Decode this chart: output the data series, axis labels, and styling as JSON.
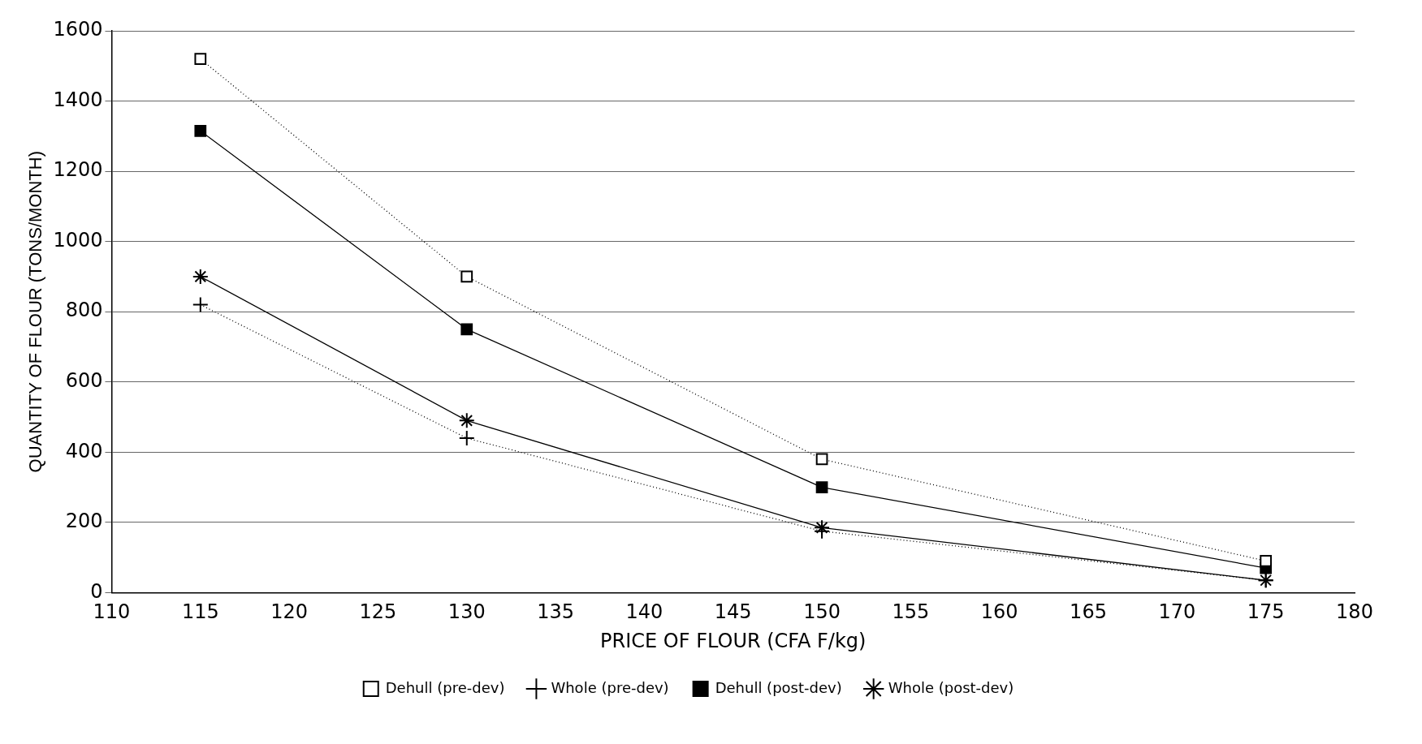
{
  "chart_data": {
    "type": "line",
    "xlabel": "PRICE OF FLOUR (CFA F/kg)",
    "ylabel": "QUANTITY OF FLOUR (TONS/MONTH)",
    "x": [
      115,
      130,
      150,
      175
    ],
    "series": [
      {
        "name": "Dehull (pre-dev)",
        "color": "#000000",
        "values": [
          1520,
          900,
          380,
          90
        ],
        "marker": "square",
        "line_style": "dotted"
      },
      {
        "name": "Whole (pre-dev)",
        "color": "#000000",
        "values": [
          820,
          440,
          175,
          35
        ],
        "marker": "cross",
        "line_style": "dotted"
      },
      {
        "name": "Dehull (post-dev)",
        "color": "#000000",
        "values": [
          1315,
          750,
          300,
          70
        ],
        "marker": "square",
        "line_style": "solid"
      },
      {
        "name": "Whole (post-dev)",
        "color": "#000000",
        "values": [
          900,
          490,
          185,
          35
        ],
        "marker": "cross",
        "line_style": "solid"
      }
    ],
    "xlim": [
      110,
      180
    ],
    "xticks": [
      110,
      115,
      120,
      125,
      130,
      135,
      140,
      145,
      150,
      155,
      160,
      165,
      170,
      175,
      180
    ],
    "ylim": [
      0,
      1600
    ],
    "yticks": [
      0,
      200,
      400,
      600,
      800,
      1000,
      1200,
      1400,
      1600
    ],
    "grid": "y",
    "legend": "bottom"
  }
}
